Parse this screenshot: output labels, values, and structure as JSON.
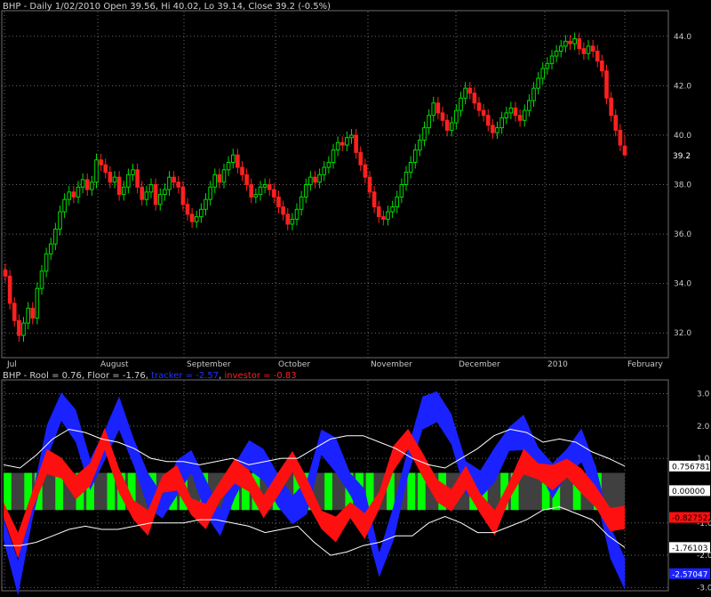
{
  "price_header": {
    "symbol": "BHP",
    "text": " - Daily 1/02/2010 Open 39.56, Hi 40.02, Lo 39.14, Close 39.2 (-0.5%)"
  },
  "indicator_header": {
    "prefix": "BHP - Rool = 0.76, Floor = -1.76, ",
    "tracker": "tracker = -2.57",
    "separator": ", ",
    "investor": "investor = -0.83"
  },
  "colors": {
    "background": "#000000",
    "up_candle": "#00dd00",
    "down_candle": "#ff2020",
    "tracker": "#1a22ff",
    "investor": "#ff1010",
    "envelope": "#ffffff",
    "zone_green": "#00ff00",
    "zone_gray": "#404040",
    "grid": "#6b6b6b",
    "axis_text": "#c8c8c8"
  },
  "chart_data": [
    {
      "type": "candlestick",
      "title": "BHP - Daily 1/02/2010 Open 39.56, Hi 40.02, Lo 39.14, Close 39.2 (-0.5%)",
      "ylim": [
        31.0,
        45.0
      ],
      "y_ticks": [
        32.0,
        34.0,
        36.0,
        38.0,
        40.0,
        42.0,
        44.0
      ],
      "y_tick_labels": [
        "32.0",
        "34.0",
        "36.0",
        "38.0",
        "40.0",
        "42.0",
        "44.0"
      ],
      "x_labels": [
        "Jul",
        "August",
        "September",
        "October",
        "November",
        "December",
        "2010",
        "February"
      ],
      "last_value_label": "39.2",
      "grid": true,
      "closes": [
        34.3,
        33.2,
        32.5,
        31.9,
        32.4,
        33.0,
        32.6,
        33.8,
        34.5,
        35.2,
        35.6,
        36.2,
        36.9,
        37.4,
        37.7,
        37.5,
        37.9,
        38.2,
        37.8,
        38.1,
        39.0,
        38.8,
        38.5,
        38.1,
        38.3,
        37.6,
        37.9,
        38.4,
        38.6,
        37.9,
        37.4,
        37.7,
        38.0,
        37.2,
        37.6,
        37.8,
        38.3,
        38.1,
        37.9,
        37.2,
        36.8,
        36.5,
        36.7,
        37.0,
        37.4,
        37.9,
        38.4,
        38.1,
        38.6,
        38.9,
        39.2,
        38.7,
        38.4,
        38.0,
        37.5,
        37.6,
        37.9,
        38.0,
        37.8,
        37.5,
        37.1,
        36.8,
        36.4,
        36.6,
        37.0,
        37.5,
        38.0,
        38.3,
        38.1,
        38.4,
        38.7,
        38.9,
        39.4,
        39.7,
        39.6,
        39.9,
        40.0,
        39.3,
        38.8,
        38.3,
        37.7,
        37.1,
        36.7,
        36.6,
        36.9,
        37.1,
        37.5,
        38.0,
        38.5,
        38.9,
        39.4,
        39.8,
        40.3,
        40.8,
        41.3,
        40.9,
        40.6,
        40.2,
        40.5,
        41.0,
        41.5,
        41.9,
        41.7,
        41.3,
        41.0,
        40.8,
        40.4,
        40.1,
        40.3,
        40.7,
        40.9,
        41.1,
        40.8,
        40.6,
        41.0,
        41.4,
        41.9,
        42.3,
        42.7,
        42.9,
        43.2,
        43.4,
        43.6,
        43.8,
        43.7,
        43.9,
        43.5,
        43.3,
        43.6,
        43.4,
        43.0,
        42.6,
        41.5,
        40.8,
        40.2,
        39.6,
        39.2
      ],
      "final_bar": {
        "open": 39.56,
        "high": 40.02,
        "low": 39.14,
        "close": 39.2
      }
    },
    {
      "type": "area",
      "title": "BHP - Rool = 0.76, Floor = -1.76, tracker = -2.57, investor = -0.83",
      "ylim": [
        -3.1,
        3.4
      ],
      "y_ticks": [
        3.0,
        2.0,
        1.0,
        -1.0,
        -2.0,
        -3.0
      ],
      "y_tick_labels": [
        "3.0",
        "2.0",
        "1.0",
        "-1.0",
        "-2.0",
        "-3.0"
      ],
      "zone_band": [
        -0.6,
        0.55
      ],
      "series": [
        {
          "name": "Rool",
          "values": [
            0.8,
            0.7,
            1.1,
            1.6,
            1.9,
            1.8,
            1.6,
            1.5,
            1.3,
            1.0,
            0.9,
            0.9,
            0.8,
            0.9,
            1.0,
            0.8,
            0.9,
            1.0,
            1.0,
            1.3,
            1.6,
            1.7,
            1.7,
            1.5,
            1.3,
            1.0,
            0.8,
            0.7,
            1.0,
            1.3,
            1.7,
            1.9,
            1.8,
            1.5,
            1.6,
            1.5,
            1.2,
            1.0,
            0.76
          ],
          "last_label": "0.756781"
        },
        {
          "name": "Floor",
          "values": [
            -1.7,
            -1.7,
            -1.6,
            -1.4,
            -1.2,
            -1.1,
            -1.2,
            -1.2,
            -1.1,
            -1.0,
            -1.0,
            -1.0,
            -0.9,
            -0.9,
            -1.0,
            -1.1,
            -1.3,
            -1.2,
            -1.1,
            -1.6,
            -2.0,
            -1.9,
            -1.7,
            -1.6,
            -1.4,
            -1.4,
            -1.0,
            -0.8,
            -1.0,
            -1.3,
            -1.3,
            -1.1,
            -0.9,
            -0.6,
            -0.5,
            -0.7,
            -0.9,
            -1.4,
            -1.76
          ],
          "last_label": "-1.76103"
        },
        {
          "name": "tracker",
          "values": [
            -1.2,
            -2.7,
            -0.5,
            1.5,
            2.6,
            2.0,
            0.5,
            1.4,
            2.4,
            1.2,
            0.0,
            -0.5,
            0.4,
            0.9,
            -0.2,
            -1.0,
            0.3,
            1.1,
            0.8,
            0.0,
            -0.6,
            -0.2,
            1.5,
            1.1,
            0.2,
            -0.5,
            -2.3,
            -1.0,
            0.9,
            2.4,
            2.6,
            1.9,
            0.4,
            0.2,
            0.8,
            1.6,
            1.8,
            1.0,
            0.3,
            0.9,
            1.4,
            0.3,
            -1.6,
            -2.57
          ],
          "last_label": "-2.57047"
        },
        {
          "name": "investor",
          "values": [
            -0.6,
            -1.7,
            -0.3,
            0.9,
            0.7,
            0.1,
            0.5,
            1.6,
            0.3,
            -0.6,
            -1.0,
            0.2,
            0.4,
            -0.5,
            -0.8,
            0.0,
            0.6,
            0.3,
            -0.5,
            0.2,
            0.9,
            0.0,
            -0.9,
            -1.2,
            -0.6,
            -1.1,
            -0.3,
            1.0,
            1.6,
            0.8,
            0.0,
            -0.3,
            0.4,
            -0.4,
            -1.0,
            0.0,
            0.9,
            0.6,
            0.4,
            0.7,
            0.3,
            -0.2,
            -0.9,
            -0.83
          ],
          "last_label": "-0.827522"
        },
        {
          "name": "zero",
          "values": [
            0.0
          ],
          "last_label": "0.00000"
        }
      ],
      "zone_green": [
        1,
        0,
        1,
        1,
        0,
        1,
        0,
        1,
        1,
        0,
        1,
        1,
        1,
        0,
        1,
        0,
        1,
        1,
        0,
        1,
        0,
        0,
        1,
        1,
        1,
        0,
        1,
        0,
        1,
        1,
        0,
        1,
        0,
        1,
        1,
        1,
        0,
        1,
        0,
        1,
        1,
        0,
        1,
        0,
        0,
        1,
        1,
        0,
        1,
        1,
        0,
        0,
        1,
        1,
        0,
        1,
        0,
        1,
        0,
        0
      ]
    }
  ]
}
